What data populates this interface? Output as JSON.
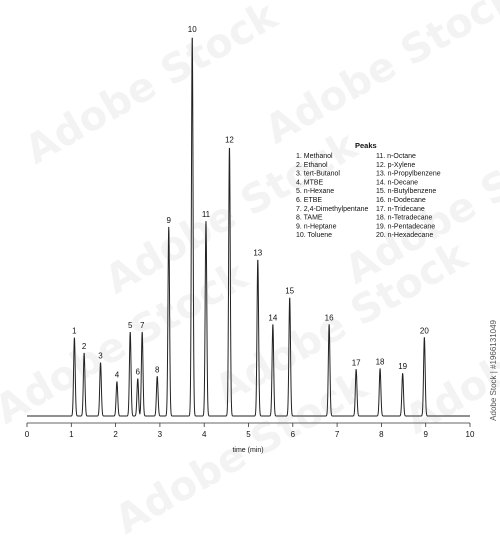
{
  "chart_data": {
    "type": "line",
    "xlabel": "time (min)",
    "xlim": [
      0,
      10
    ],
    "ylim": [
      0,
      100
    ],
    "x_ticks": [
      "0",
      "1",
      "2",
      "3",
      "4",
      "5",
      "6",
      "7",
      "8",
      "9",
      "10"
    ],
    "grid": false,
    "peaks": [
      {
        "label": "1",
        "time": 1.07,
        "height": 20.5
      },
      {
        "label": "2",
        "time": 1.29,
        "height": 16.5
      },
      {
        "label": "3",
        "time": 1.66,
        "height": 14
      },
      {
        "label": "4",
        "time": 2.03,
        "height": 9
      },
      {
        "label": "5",
        "time": 2.33,
        "height": 22
      },
      {
        "label": "6",
        "time": 2.5,
        "height": 9.8
      },
      {
        "label": "7",
        "time": 2.6,
        "height": 22
      },
      {
        "label": "8",
        "time": 2.94,
        "height": 10.4
      },
      {
        "label": "9",
        "time": 3.2,
        "height": 49.5
      },
      {
        "label": "10",
        "time": 3.73,
        "height": 99.5
      },
      {
        "label": "11",
        "time": 4.04,
        "height": 51
      },
      {
        "label": "12",
        "time": 4.57,
        "height": 70.5
      },
      {
        "label": "13",
        "time": 5.21,
        "height": 41
      },
      {
        "label": "14",
        "time": 5.55,
        "height": 24
      },
      {
        "label": "15",
        "time": 5.93,
        "height": 31
      },
      {
        "label": "16",
        "time": 6.82,
        "height": 24
      },
      {
        "label": "17",
        "time": 7.43,
        "height": 12.2
      },
      {
        "label": "18",
        "time": 7.97,
        "height": 12.4
      },
      {
        "label": "19",
        "time": 8.48,
        "height": 11.2
      },
      {
        "label": "20",
        "time": 8.97,
        "height": 20.6
      }
    ],
    "legend": {
      "title": "Peaks",
      "left": [
        "1. Methanol",
        "2. Ethanol",
        "3. tert-Butanol",
        "4. MTBE",
        "5. n-Hexane",
        "6. ETBE",
        "7. 2,4-Dimethylpentane",
        "8. TAME",
        "9. n-Heptane",
        "10. Toluene"
      ],
      "right": [
        "11. n-Octane",
        "12. p-Xylene",
        "13. n-Propylbenzene",
        "14. n-Decane",
        "15. n-Butylbenzene",
        "16. n-Dodecane",
        "17. n-Tridecane",
        "18. n-Tetradecane",
        "19. n-Pentadecane",
        "20. n-Hexadecane"
      ]
    }
  },
  "stock_id": "Adobe Stock | #1966131049",
  "watermark": "Adobe Stock",
  "colors": {
    "line": "#222222",
    "axis": "#333333",
    "text": "#111111",
    "background": "#ffffff"
  }
}
